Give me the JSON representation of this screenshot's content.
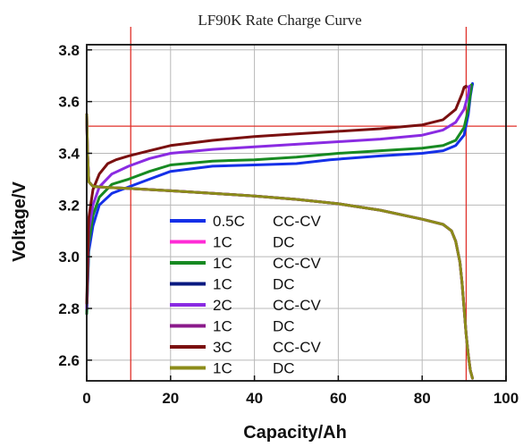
{
  "chart_data": {
    "type": "line",
    "title": "LF90K Rate Charge Curve",
    "xlabel": "Capacity/Ah",
    "ylabel": "Voltage/V",
    "xlim": [
      0,
      100
    ],
    "ylim": [
      2.52,
      3.82
    ],
    "xticks": [
      0,
      20,
      40,
      60,
      80,
      100
    ],
    "yticks": [
      2.6,
      2.8,
      3.0,
      3.2,
      3.4,
      3.6,
      3.8
    ],
    "xtick_labels": [
      "0",
      "20",
      "40",
      "60",
      "80",
      "100"
    ],
    "ytick_labels": [
      "2.6",
      "2.8",
      "3.0",
      "3.2",
      "3.4",
      "3.6",
      "3.8"
    ],
    "grid": true,
    "legend_position": "center-left",
    "reference_lines": {
      "color": "#e0302a",
      "vertical_x": [
        10.5,
        90.5
      ],
      "horizontal_y": [
        3.505
      ]
    },
    "series": [
      {
        "name": "0.5C",
        "mode": "CC-CV",
        "color": "#1530e8",
        "x": [
          0,
          0.5,
          1.5,
          3,
          6,
          10,
          15,
          20,
          30,
          40,
          50,
          58,
          62,
          70,
          80,
          85,
          88,
          90,
          91,
          91.5,
          92,
          92,
          91.6
        ],
        "y": [
          2.78,
          3.02,
          3.12,
          3.2,
          3.245,
          3.27,
          3.3,
          3.33,
          3.35,
          3.355,
          3.36,
          3.375,
          3.38,
          3.39,
          3.4,
          3.41,
          3.43,
          3.47,
          3.55,
          3.62,
          3.67,
          3.665,
          3.66
        ]
      },
      {
        "name": "1C",
        "mode": "DC",
        "color": "#ff2bd6",
        "x": [
          0,
          0.2,
          0.5,
          1.5,
          5,
          10,
          20,
          30,
          40,
          50,
          60,
          70,
          80,
          85,
          87,
          88,
          89,
          89.5,
          90,
          90.5,
          91,
          91.5,
          92
        ],
        "y": [
          3.55,
          3.4,
          3.29,
          3.272,
          3.268,
          3.264,
          3.255,
          3.245,
          3.235,
          3.222,
          3.205,
          3.18,
          3.145,
          3.125,
          3.1,
          3.06,
          2.98,
          2.9,
          2.8,
          2.7,
          2.62,
          2.56,
          2.53
        ]
      },
      {
        "name": "1C",
        "mode": "CC-CV",
        "color": "#178a22",
        "x": [
          0,
          0.5,
          1.5,
          3,
          6,
          10,
          15,
          20,
          30,
          40,
          50,
          60,
          70,
          80,
          85,
          88,
          90,
          91,
          91.5,
          91.8,
          91.5
        ],
        "y": [
          2.78,
          3.05,
          3.16,
          3.23,
          3.28,
          3.3,
          3.33,
          3.355,
          3.37,
          3.375,
          3.385,
          3.4,
          3.41,
          3.42,
          3.43,
          3.45,
          3.5,
          3.57,
          3.63,
          3.665,
          3.66
        ]
      },
      {
        "name": "1C",
        "mode": "DC",
        "color": "#0a1a80",
        "x": [
          0,
          0.2,
          0.5,
          1.5,
          5,
          10,
          20,
          30,
          40,
          50,
          60,
          70,
          80,
          85,
          87,
          88,
          89,
          89.5,
          90,
          90.5,
          91,
          91.5,
          92
        ],
        "y": [
          3.55,
          3.4,
          3.29,
          3.272,
          3.268,
          3.264,
          3.255,
          3.245,
          3.235,
          3.222,
          3.205,
          3.18,
          3.145,
          3.125,
          3.1,
          3.06,
          2.98,
          2.9,
          2.8,
          2.7,
          2.62,
          2.56,
          2.53
        ]
      },
      {
        "name": "2C",
        "mode": "CC-CV",
        "color": "#8a2be2",
        "x": [
          0,
          0.5,
          1.5,
          3,
          6,
          10,
          15,
          20,
          30,
          40,
          50,
          60,
          70,
          80,
          85,
          88,
          90,
          91,
          91.3,
          91
        ],
        "y": [
          2.8,
          3.1,
          3.2,
          3.27,
          3.32,
          3.35,
          3.38,
          3.4,
          3.415,
          3.425,
          3.435,
          3.445,
          3.455,
          3.47,
          3.49,
          3.52,
          3.57,
          3.63,
          3.66,
          3.655
        ]
      },
      {
        "name": "1C",
        "mode": "DC",
        "color": "#8b1a8b",
        "x": [
          0,
          0.2,
          0.5,
          1.5,
          5,
          10,
          20,
          30,
          40,
          50,
          60,
          70,
          80,
          85,
          87,
          88,
          89,
          89.5,
          90,
          90.5,
          91,
          91.5,
          92
        ],
        "y": [
          3.55,
          3.4,
          3.29,
          3.272,
          3.268,
          3.264,
          3.255,
          3.245,
          3.235,
          3.222,
          3.205,
          3.18,
          3.145,
          3.125,
          3.1,
          3.06,
          2.98,
          2.9,
          2.8,
          2.7,
          2.62,
          2.56,
          2.53
        ]
      },
      {
        "name": "3C",
        "mode": "CC-CV",
        "color": "#7a1010",
        "x": [
          0,
          0.5,
          1.5,
          3,
          5,
          7,
          10,
          15,
          20,
          30,
          40,
          50,
          60,
          70,
          80,
          85,
          88,
          89.5,
          90,
          90.5,
          90.3
        ],
        "y": [
          2.82,
          3.15,
          3.26,
          3.32,
          3.36,
          3.375,
          3.39,
          3.41,
          3.43,
          3.45,
          3.465,
          3.475,
          3.485,
          3.495,
          3.51,
          3.53,
          3.57,
          3.63,
          3.655,
          3.66,
          3.655
        ]
      },
      {
        "name": "1C",
        "mode": "DC",
        "color": "#8c8c1a",
        "x": [
          0,
          0.2,
          0.5,
          1.5,
          5,
          10,
          20,
          30,
          40,
          50,
          60,
          70,
          80,
          85,
          87,
          88,
          89,
          89.5,
          90,
          90.5,
          91,
          91.5,
          92
        ],
        "y": [
          3.55,
          3.4,
          3.29,
          3.272,
          3.268,
          3.264,
          3.255,
          3.245,
          3.235,
          3.222,
          3.205,
          3.18,
          3.145,
          3.125,
          3.1,
          3.06,
          2.98,
          2.9,
          2.8,
          2.7,
          2.62,
          2.56,
          2.53
        ]
      }
    ]
  }
}
